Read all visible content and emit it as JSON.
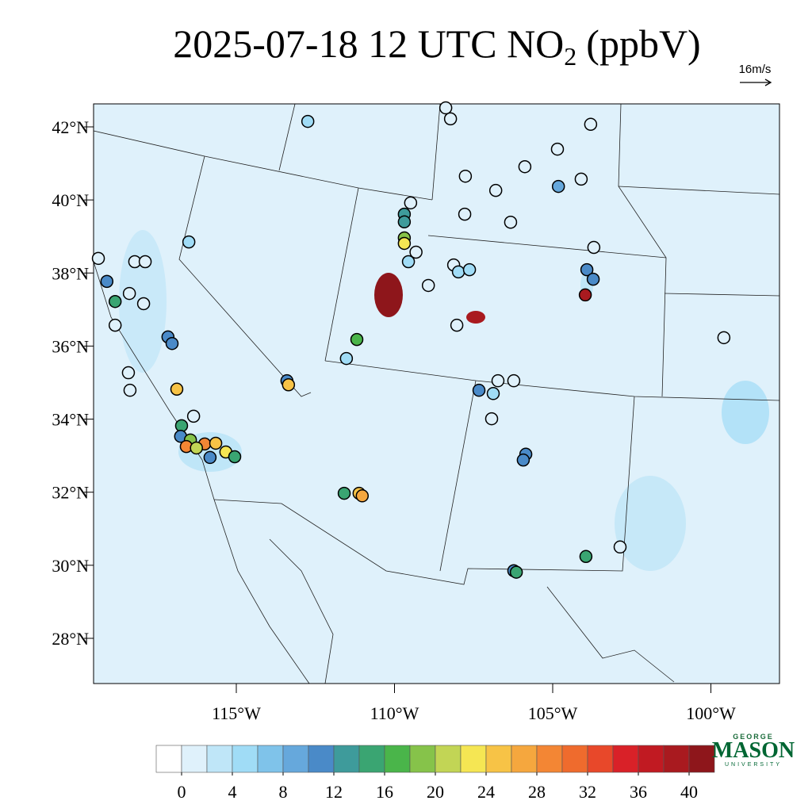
{
  "map": {
    "title": {
      "main": "2025-07-18 12 UTC NO",
      "sub": "2",
      "rest": "(ppbV)"
    },
    "wind_scale": "16m/s",
    "lat_ticks": [
      {
        "value": 42,
        "label": "42°N"
      },
      {
        "value": 40,
        "label": "40°N"
      },
      {
        "value": 38,
        "label": "38°N"
      },
      {
        "value": 36,
        "label": "36°N"
      },
      {
        "value": 34,
        "label": "34°N"
      },
      {
        "value": 32,
        "label": "32°N"
      },
      {
        "value": 30,
        "label": "30°N"
      },
      {
        "value": 28,
        "label": "28°N"
      }
    ],
    "lon_ticks": [
      {
        "value": -115,
        "label": "115°W"
      },
      {
        "value": -110,
        "label": "110°W"
      },
      {
        "value": -105,
        "label": "105°W"
      },
      {
        "value": -100,
        "label": "100°W"
      }
    ],
    "stations": [
      {
        "lon": -108.38,
        "lat": 42.52,
        "value": 1
      },
      {
        "lon": -108.23,
        "lat": 42.22,
        "value": 1
      },
      {
        "lon": -112.74,
        "lat": 42.15,
        "value": 5
      },
      {
        "lon": -103.8,
        "lat": 42.07,
        "value": 1
      },
      {
        "lon": -104.85,
        "lat": 41.39,
        "value": 1
      },
      {
        "lon": -105.88,
        "lat": 40.91,
        "value": 1
      },
      {
        "lon": -107.76,
        "lat": 40.65,
        "value": 1
      },
      {
        "lon": -104.1,
        "lat": 40.57,
        "value": 1
      },
      {
        "lon": -104.82,
        "lat": 40.37,
        "value": 9
      },
      {
        "lon": -106.8,
        "lat": 40.26,
        "value": 1
      },
      {
        "lon": -109.49,
        "lat": 39.92,
        "value": 1
      },
      {
        "lon": -109.69,
        "lat": 39.61,
        "value": 12
      },
      {
        "lon": -109.69,
        "lat": 39.4,
        "value": 12
      },
      {
        "lon": -109.69,
        "lat": 38.96,
        "value": 18
      },
      {
        "lon": -109.69,
        "lat": 38.81,
        "value": 23
      },
      {
        "lon": -107.78,
        "lat": 39.61,
        "value": 1
      },
      {
        "lon": -106.33,
        "lat": 39.39,
        "value": 1
      },
      {
        "lon": -103.7,
        "lat": 38.7,
        "value": 1
      },
      {
        "lon": -109.32,
        "lat": 38.57,
        "value": 1
      },
      {
        "lon": -109.56,
        "lat": 38.31,
        "value": 5
      },
      {
        "lon": -108.13,
        "lat": 38.22,
        "value": 1
      },
      {
        "lon": -107.98,
        "lat": 38.03,
        "value": 5
      },
      {
        "lon": -107.63,
        "lat": 38.09,
        "value": 5
      },
      {
        "lon": -108.93,
        "lat": 37.66,
        "value": 1
      },
      {
        "lon": -116.5,
        "lat": 38.85,
        "value": 4
      },
      {
        "lon": -119.36,
        "lat": 38.4,
        "value": 1
      },
      {
        "lon": -118.21,
        "lat": 38.31,
        "value": 1
      },
      {
        "lon": -117.88,
        "lat": 38.31,
        "value": 1
      },
      {
        "lon": -119.09,
        "lat": 37.77,
        "value": 10
      },
      {
        "lon": -118.83,
        "lat": 37.22,
        "value": 14
      },
      {
        "lon": -118.38,
        "lat": 37.44,
        "value": 1
      },
      {
        "lon": -117.93,
        "lat": 37.16,
        "value": 1
      },
      {
        "lon": -118.83,
        "lat": 36.57,
        "value": 1
      },
      {
        "lon": -103.92,
        "lat": 38.09,
        "value": 10
      },
      {
        "lon": -103.72,
        "lat": 37.83,
        "value": 10
      },
      {
        "lon": -103.97,
        "lat": 37.4,
        "value": 38
      },
      {
        "lon": -117.16,
        "lat": 36.25,
        "value": 10
      },
      {
        "lon": -117.03,
        "lat": 36.07,
        "value": 10
      },
      {
        "lon": -111.19,
        "lat": 36.18,
        "value": 16
      },
      {
        "lon": -108.03,
        "lat": 36.57,
        "value": 1
      },
      {
        "lon": -111.52,
        "lat": 35.66,
        "value": 4
      },
      {
        "lon": -99.59,
        "lat": 36.23,
        "value": 1
      },
      {
        "lon": -118.41,
        "lat": 35.27,
        "value": 1
      },
      {
        "lon": -118.36,
        "lat": 34.79,
        "value": 1
      },
      {
        "lon": -116.88,
        "lat": 34.82,
        "value": 24
      },
      {
        "lon": -113.4,
        "lat": 35.05,
        "value": 10
      },
      {
        "lon": -113.35,
        "lat": 34.94,
        "value": 24
      },
      {
        "lon": -107.33,
        "lat": 34.79,
        "value": 10
      },
      {
        "lon": -106.73,
        "lat": 35.05,
        "value": 1
      },
      {
        "lon": -106.23,
        "lat": 35.05,
        "value": 1
      },
      {
        "lon": -106.88,
        "lat": 34.7,
        "value": 5
      },
      {
        "lon": -116.35,
        "lat": 34.08,
        "value": 1
      },
      {
        "lon": -116.73,
        "lat": 33.82,
        "value": 14
      },
      {
        "lon": -116.76,
        "lat": 33.53,
        "value": 10
      },
      {
        "lon": -116.45,
        "lat": 33.43,
        "value": 18
      },
      {
        "lon": -116.0,
        "lat": 33.32,
        "value": 28
      },
      {
        "lon": -115.65,
        "lat": 33.34,
        "value": 24
      },
      {
        "lon": -116.58,
        "lat": 33.25,
        "value": 28
      },
      {
        "lon": -116.26,
        "lat": 33.21,
        "value": 20
      },
      {
        "lon": -115.83,
        "lat": 32.95,
        "value": 10
      },
      {
        "lon": -115.33,
        "lat": 33.1,
        "value": 22
      },
      {
        "lon": -115.05,
        "lat": 32.97,
        "value": 15
      },
      {
        "lon": -105.85,
        "lat": 33.04,
        "value": 10
      },
      {
        "lon": -105.93,
        "lat": 32.88,
        "value": 10
      },
      {
        "lon": -106.93,
        "lat": 34.01,
        "value": 1
      },
      {
        "lon": -111.59,
        "lat": 31.97,
        "value": 14
      },
      {
        "lon": -111.12,
        "lat": 31.97,
        "value": 24
      },
      {
        "lon": -111.02,
        "lat": 31.9,
        "value": 26
      },
      {
        "lon": -103.95,
        "lat": 30.24,
        "value": 14
      },
      {
        "lon": -102.87,
        "lat": 30.5,
        "value": 1
      },
      {
        "lon": -106.23,
        "lat": 29.85,
        "value": 10
      },
      {
        "lon": -106.15,
        "lat": 29.81,
        "value": 15
      }
    ],
    "colorbar": {
      "ticks": [
        0,
        4,
        8,
        12,
        16,
        20,
        24,
        28,
        32,
        36,
        40
      ],
      "colors": [
        "#ffffff",
        "#dff1fb",
        "#bfe6f8",
        "#a0dcf6",
        "#7fc3ea",
        "#66a8dc",
        "#4a8ac8",
        "#3e9b9b",
        "#3aa572",
        "#4ab54a",
        "#86c34a",
        "#c2d555",
        "#f5e653",
        "#f7c346",
        "#f5a73e",
        "#f38634",
        "#ef6b2d",
        "#e8482a",
        "#d92128",
        "#c11a22",
        "#a91a1f",
        "#8e161b"
      ]
    },
    "logo": {
      "top": "GEORGE",
      "main": "MASON",
      "bottom": "UNIVERSITY"
    }
  }
}
